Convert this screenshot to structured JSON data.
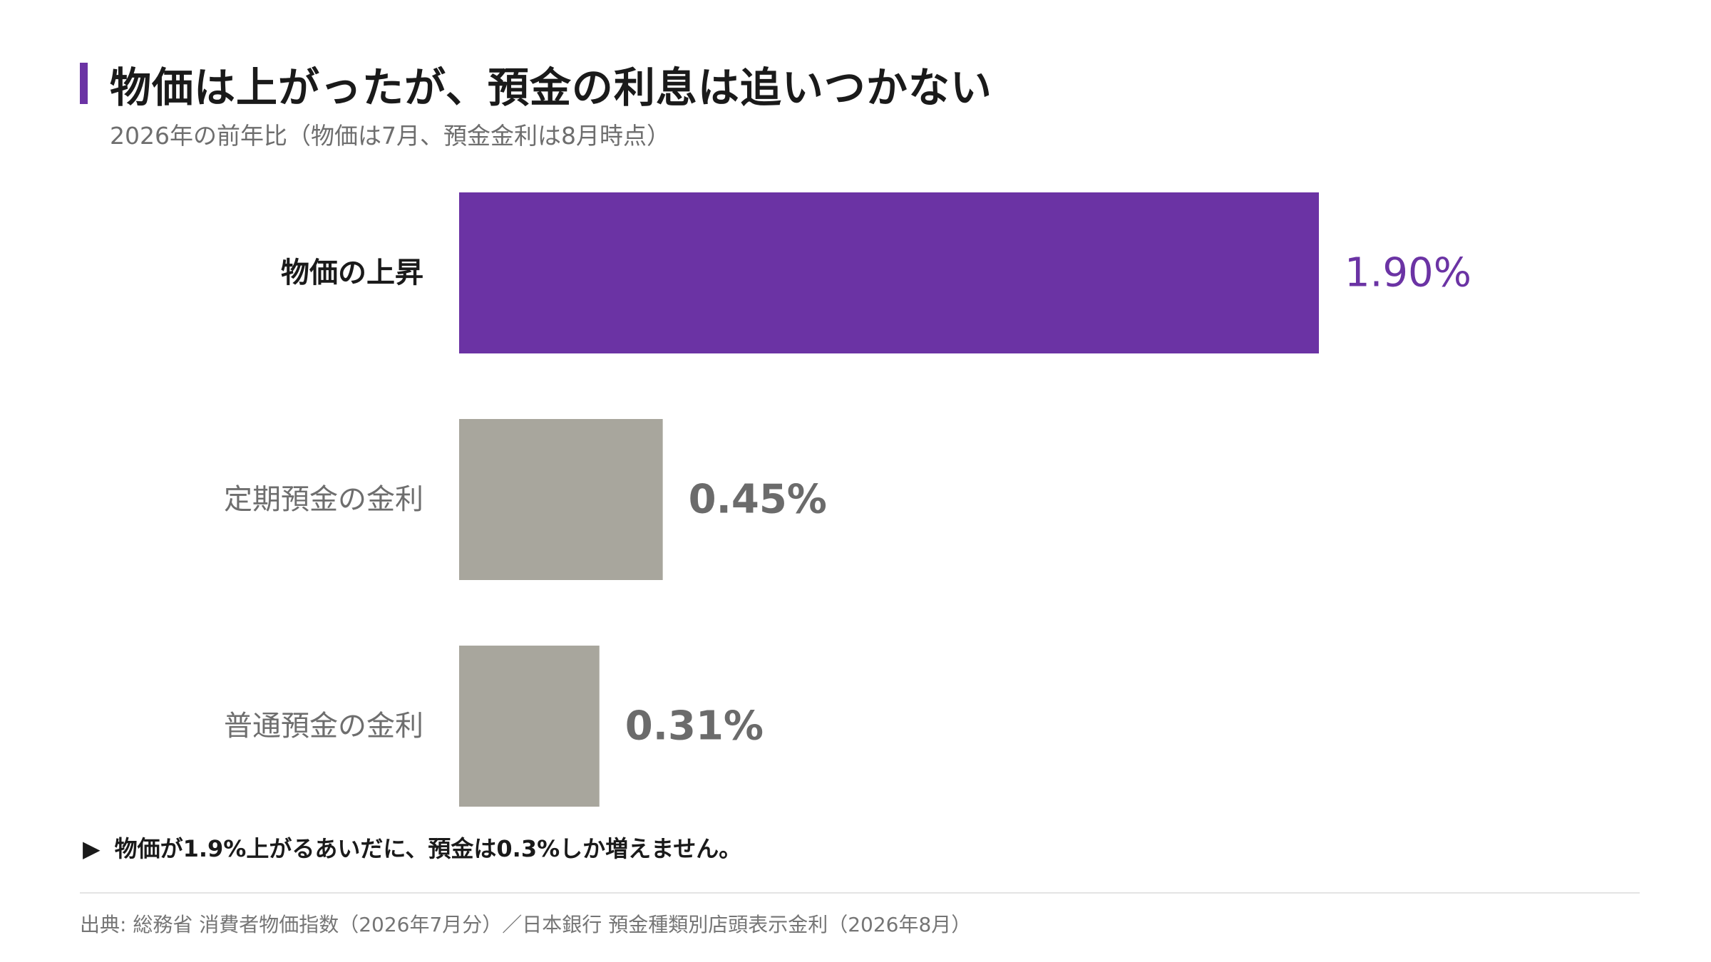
{
  "title": "物価は上がったが、預金の利息は追いつかない",
  "subtitle": "2026年の前年比（物価は7月、預金金利は8月時点）",
  "accent_color": "#6b33a4",
  "neutral_color": "#a8a69d",
  "chart_data": {
    "type": "bar",
    "orientation": "horizontal",
    "categories": [
      "物価の上昇",
      "定期預金の金利",
      "普通預金の金利"
    ],
    "values": [
      1.9,
      0.45,
      0.31
    ],
    "value_labels": [
      "1.90%",
      "0.45%",
      "0.31%"
    ],
    "unit": "%",
    "highlight_index": 0,
    "xlim": [
      0,
      1.9
    ],
    "grid": false,
    "legend": false
  },
  "note": {
    "arrow": "▶",
    "text": "物価が1.9%上がるあいだに、預金は0.3%しか増えません。"
  },
  "source": "出典: 総務省 消費者物価指数（2026年7月分）／日本銀行 預金種類別店頭表示金利（2026年8月）"
}
